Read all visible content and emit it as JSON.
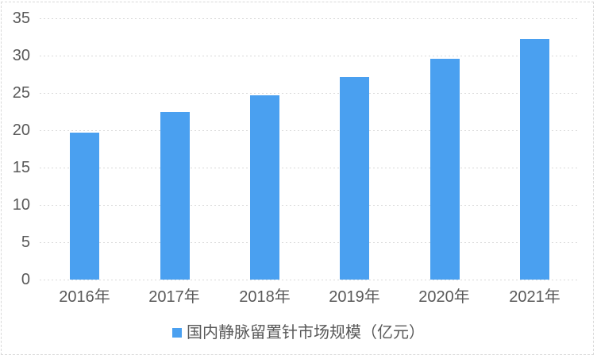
{
  "chart_data": {
    "type": "bar",
    "title": "",
    "categories": [
      "2016年",
      "2017年",
      "2018年",
      "2019年",
      "2020年",
      "2021年"
    ],
    "series": [
      {
        "name": "国内静脉留置针市场规模（亿元）",
        "values": [
          19.7,
          22.4,
          24.7,
          27.1,
          29.6,
          32.2
        ]
      }
    ],
    "xlabel": "",
    "ylabel": "",
    "ylim": [
      0,
      35
    ],
    "yticks": [
      0,
      5,
      10,
      15,
      20,
      25,
      30,
      35
    ],
    "grid": "horizontal-dashed",
    "legend_position": "bottom-center",
    "colors": {
      "bar": "#4aa0f0",
      "axis_text": "#595959",
      "gridline": "#d9d9d9",
      "background": "#ffffff",
      "outer_border": "#d9d9d9"
    }
  },
  "legend": {
    "marker": "blue-square",
    "label": "国内静脉留置针市场规模（亿元）"
  }
}
